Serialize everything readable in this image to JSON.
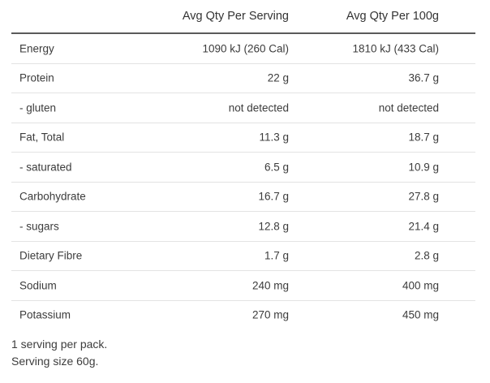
{
  "table": {
    "headers": {
      "serving": "Avg Qty Per Serving",
      "per100g": "Avg Qty Per 100g"
    },
    "rows": [
      {
        "label": "Energy",
        "serving": "1090 kJ (260 Cal)",
        "per100g": "1810 kJ (433 Cal)"
      },
      {
        "label": "Protein",
        "serving": "22 g",
        "per100g": "36.7 g"
      },
      {
        "label": "- gluten",
        "serving": "not detected",
        "per100g": "not detected"
      },
      {
        "label": "Fat, Total",
        "serving": "11.3 g",
        "per100g": "18.7 g"
      },
      {
        "label": "- saturated",
        "serving": "6.5 g",
        "per100g": "10.9 g"
      },
      {
        "label": "Carbohydrate",
        "serving": "16.7 g",
        "per100g": "27.8 g"
      },
      {
        "label": "- sugars",
        "serving": "12.8 g",
        "per100g": "21.4 g"
      },
      {
        "label": "Dietary Fibre",
        "serving": "1.7 g",
        "per100g": "2.8 g"
      },
      {
        "label": "Sodium",
        "serving": "240 mg",
        "per100g": "400 mg"
      },
      {
        "label": "Potassium",
        "serving": "270 mg",
        "per100g": "450 mg"
      }
    ]
  },
  "notes": {
    "servings_per_pack": "1 serving per pack.",
    "serving_size": "Serving size 60g."
  }
}
